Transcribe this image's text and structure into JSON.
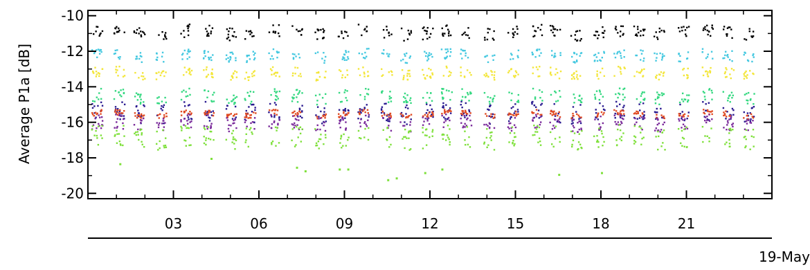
{
  "chart_data": {
    "type": "scatter",
    "title": "",
    "ylabel": "Average P1a [dB]",
    "xlabel": "",
    "date_label": "19-May",
    "ylim": [
      -20.3,
      -9.7
    ],
    "yticks": [
      -10,
      -12,
      -14,
      -16,
      -18,
      -20
    ],
    "ytick_labels": [
      "-10",
      "-12",
      "-14",
      "-16",
      "-18",
      "-20"
    ],
    "xlim": [
      0,
      24
    ],
    "xticks": [
      3,
      6,
      9,
      12,
      15,
      18,
      21
    ],
    "xtick_labels": [
      "03",
      "06",
      "09",
      "12",
      "15",
      "18",
      "21"
    ],
    "grid": false,
    "series": [
      {
        "color": "#000000",
        "level": -10.9,
        "spread": 0.35
      },
      {
        "color": "#44c8e0",
        "level": -12.2,
        "spread": 0.3
      },
      {
        "color": "#f3e63a",
        "level": -13.2,
        "spread": 0.3
      },
      {
        "color": "#34d880",
        "level": -14.5,
        "spread": 0.35
      },
      {
        "color": "#2a1a90",
        "level": -15.4,
        "spread": 0.55
      },
      {
        "color": "#e04a22",
        "level": -15.5,
        "spread": 0.15
      },
      {
        "color": "#7a2a9a",
        "level": -16.0,
        "spread": 0.4
      },
      {
        "color": "#7ee03a",
        "level": -16.8,
        "spread": 0.6
      }
    ],
    "sparse_low_points": [
      {
        "x": 7.3,
        "y": -18.5
      },
      {
        "x": 7.6,
        "y": -18.7
      },
      {
        "x": 8.8,
        "y": -18.6
      },
      {
        "x": 9.1,
        "y": -18.6
      },
      {
        "x": 10.5,
        "y": -19.2
      },
      {
        "x": 10.8,
        "y": -19.1
      },
      {
        "x": 11.8,
        "y": -18.8
      },
      {
        "x": 12.4,
        "y": -18.6
      },
      {
        "x": 1.1,
        "y": -18.3
      },
      {
        "x": 4.3,
        "y": -18.0
      },
      {
        "x": 16.5,
        "y": -18.9
      },
      {
        "x": 18.0,
        "y": -18.8
      }
    ]
  }
}
